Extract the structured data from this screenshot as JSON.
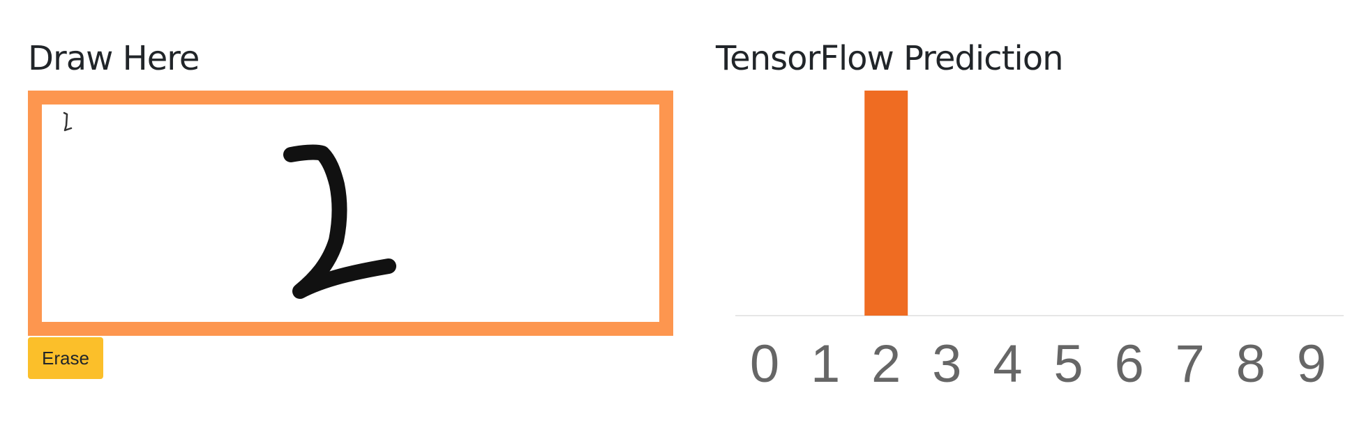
{
  "draw_panel": {
    "heading": "Draw Here",
    "erase_label": "Erase",
    "frame_color": "#fd964f",
    "erase_color": "#fbbf2a"
  },
  "prediction_panel": {
    "heading": "TensorFlow Prediction"
  },
  "chart_data": {
    "type": "bar",
    "categories": [
      "0",
      "1",
      "2",
      "3",
      "4",
      "5",
      "6",
      "7",
      "8",
      "9"
    ],
    "values": [
      0,
      0,
      1,
      0,
      0,
      0,
      0,
      0,
      0,
      0
    ],
    "ylim": [
      0,
      1
    ],
    "bar_color": "#ef6c22",
    "tick_label_color": "#666666",
    "grid": false,
    "legend": false
  }
}
